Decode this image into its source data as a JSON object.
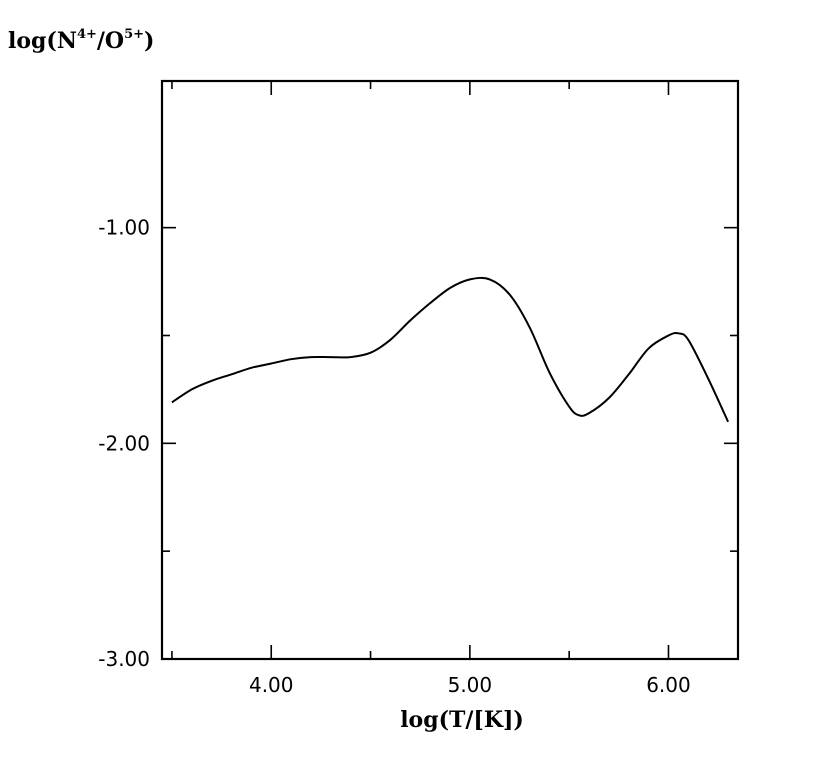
{
  "chart_data": {
    "type": "line",
    "title": "",
    "xlabel": "log(T/[K])",
    "ylabel": {
      "prefix": "log(N",
      "sup1": "4+",
      "middle": "/O",
      "sup2": "5+",
      "suffix": ")"
    },
    "xlim": [
      3.45,
      6.35
    ],
    "ylim": [
      -3.0,
      -0.32
    ],
    "x_ticks": [
      {
        "value": 4.0,
        "label": "4.00"
      },
      {
        "value": 5.0,
        "label": "5.00"
      },
      {
        "value": 6.0,
        "label": "6.00"
      }
    ],
    "x_minor_ticks": [
      3.5,
      4.5,
      5.5
    ],
    "y_ticks": [
      {
        "value": -1.0,
        "label": "-1.00"
      },
      {
        "value": -2.0,
        "label": "-2.00"
      },
      {
        "value": -3.0,
        "label": "-3.00"
      }
    ],
    "y_minor_ticks": [
      -1.5,
      -2.5
    ],
    "grid": false,
    "series": [
      {
        "x": [
          3.5,
          3.6,
          3.7,
          3.8,
          3.9,
          4.0,
          4.1,
          4.2,
          4.3,
          4.4,
          4.5,
          4.6,
          4.7,
          4.8,
          4.9,
          5.0,
          5.1,
          5.2,
          5.3,
          5.4,
          5.5,
          5.55,
          5.6,
          5.7,
          5.8,
          5.9,
          6.0,
          6.05,
          6.1,
          6.2,
          6.3
        ],
        "y": [
          -1.81,
          -1.75,
          -1.71,
          -1.68,
          -1.65,
          -1.63,
          -1.61,
          -1.6,
          -1.6,
          -1.6,
          -1.58,
          -1.52,
          -1.43,
          -1.35,
          -1.28,
          -1.24,
          -1.24,
          -1.31,
          -1.46,
          -1.67,
          -1.83,
          -1.87,
          -1.86,
          -1.79,
          -1.68,
          -1.56,
          -1.5,
          -1.49,
          -1.52,
          -1.7,
          -1.9
        ]
      }
    ]
  }
}
